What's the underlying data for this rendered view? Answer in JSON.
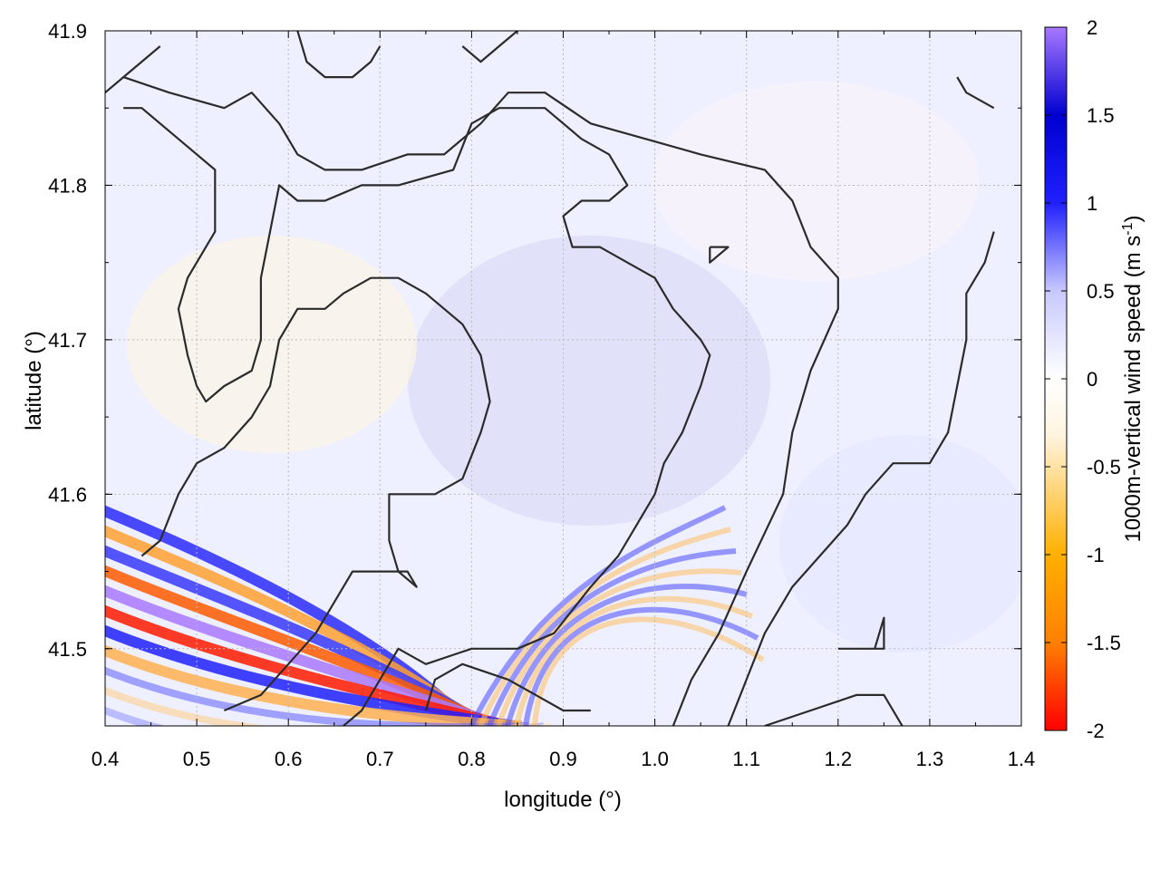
{
  "chart_data": {
    "type": "heatmap",
    "title": "",
    "xlabel": "longitude (°)",
    "ylabel": "latitude (°)",
    "xlim": [
      0.4,
      1.4
    ],
    "ylim": [
      41.45,
      41.9
    ],
    "xticks": [
      "0.4",
      "0.5",
      "0.6",
      "0.7",
      "0.8",
      "0.9",
      "1.0",
      "1.1",
      "1.2",
      "1.3",
      "1.4"
    ],
    "yticks": [
      "41.5",
      "41.6",
      "41.7",
      "41.8",
      "41.9"
    ],
    "grid": true,
    "colorbar": {
      "label": "1000m-vertical wind speed (m s",
      "label_sup": "-1",
      "label_end": ")",
      "range": [
        -2,
        2
      ],
      "ticks": [
        "2",
        "1.5",
        "1",
        "0.5",
        "0",
        "-0.5",
        "-1",
        "-1.5",
        "-2"
      ],
      "colors": [
        "#ff0000",
        "#ff8000",
        "#ffb000",
        "#fff4e0",
        "#ffffff",
        "#c8c8ff",
        "#2020ff",
        "#0000d0",
        "#a878ff"
      ]
    },
    "contours": [
      [
        [
          0.42,
          41.87
        ],
        [
          0.47,
          41.86
        ],
        [
          0.53,
          41.85
        ],
        [
          0.56,
          41.86
        ],
        [
          0.59,
          41.84
        ],
        [
          0.61,
          41.82
        ],
        [
          0.64,
          41.81
        ],
        [
          0.68,
          41.81
        ],
        [
          0.73,
          41.82
        ],
        [
          0.77,
          41.82
        ],
        [
          0.81,
          41.84
        ],
        [
          0.84,
          41.86
        ],
        [
          0.88,
          41.86
        ],
        [
          0.93,
          41.84
        ],
        [
          0.99,
          41.83
        ],
        [
          1.05,
          41.82
        ],
        [
          1.12,
          41.81
        ],
        [
          1.15,
          41.79
        ],
        [
          1.17,
          41.76
        ],
        [
          1.2,
          41.74
        ],
        [
          1.2,
          41.72
        ],
        [
          1.17,
          41.68
        ],
        [
          1.15,
          41.64
        ],
        [
          1.14,
          41.6
        ],
        [
          1.1,
          41.55
        ],
        [
          1.07,
          41.51
        ],
        [
          1.04,
          41.48
        ],
        [
          1.02,
          41.45
        ]
      ],
      [
        [
          0.42,
          41.85
        ],
        [
          0.44,
          41.85
        ],
        [
          0.48,
          41.83
        ],
        [
          0.52,
          41.81
        ],
        [
          0.52,
          41.77
        ],
        [
          0.51,
          41.76
        ],
        [
          0.49,
          41.74
        ],
        [
          0.48,
          41.72
        ],
        [
          0.49,
          41.69
        ],
        [
          0.5,
          41.67
        ],
        [
          0.51,
          41.66
        ],
        [
          0.53,
          41.67
        ],
        [
          0.56,
          41.68
        ],
        [
          0.57,
          41.7
        ],
        [
          0.57,
          41.74
        ],
        [
          0.58,
          41.77
        ],
        [
          0.59,
          41.8
        ],
        [
          0.61,
          41.79
        ],
        [
          0.64,
          41.79
        ],
        [
          0.68,
          41.8
        ],
        [
          0.72,
          41.8
        ],
        [
          0.78,
          41.81
        ],
        [
          0.8,
          41.84
        ],
        [
          0.83,
          41.85
        ],
        [
          0.88,
          41.85
        ],
        [
          0.92,
          41.83
        ],
        [
          0.95,
          41.82
        ],
        [
          0.97,
          41.8
        ],
        [
          0.95,
          41.79
        ],
        [
          0.92,
          41.79
        ],
        [
          0.9,
          41.78
        ],
        [
          0.91,
          41.76
        ],
        [
          0.94,
          41.76
        ],
        [
          0.97,
          41.75
        ],
        [
          1.0,
          41.74
        ],
        [
          1.02,
          41.72
        ],
        [
          1.05,
          41.7
        ],
        [
          1.06,
          41.69
        ],
        [
          1.05,
          41.67
        ],
        [
          1.03,
          41.64
        ],
        [
          1.01,
          41.62
        ],
        [
          1.0,
          41.6
        ],
        [
          0.98,
          41.58
        ],
        [
          0.96,
          41.56
        ],
        [
          0.93,
          41.54
        ],
        [
          0.89,
          41.51
        ],
        [
          0.85,
          41.5
        ],
        [
          0.8,
          41.5
        ],
        [
          0.75,
          41.49
        ],
        [
          0.72,
          41.5
        ],
        [
          0.7,
          41.48
        ],
        [
          0.68,
          41.46
        ],
        [
          0.66,
          41.45
        ]
      ],
      [
        [
          0.44,
          41.56
        ],
        [
          0.46,
          41.57
        ],
        [
          0.48,
          41.6
        ],
        [
          0.5,
          41.62
        ],
        [
          0.53,
          41.63
        ],
        [
          0.56,
          41.65
        ],
        [
          0.58,
          41.67
        ],
        [
          0.59,
          41.7
        ],
        [
          0.61,
          41.72
        ],
        [
          0.64,
          41.72
        ],
        [
          0.66,
          41.73
        ],
        [
          0.69,
          41.74
        ],
        [
          0.72,
          41.74
        ],
        [
          0.75,
          41.73
        ],
        [
          0.77,
          41.72
        ],
        [
          0.79,
          41.71
        ],
        [
          0.81,
          41.69
        ],
        [
          0.82,
          41.66
        ],
        [
          0.81,
          41.64
        ],
        [
          0.79,
          41.61
        ],
        [
          0.76,
          41.6
        ],
        [
          0.73,
          41.6
        ],
        [
          0.71,
          41.6
        ],
        [
          0.71,
          41.57
        ],
        [
          0.72,
          41.55
        ],
        [
          0.74,
          41.54
        ],
        [
          0.73,
          41.55
        ],
        [
          0.7,
          41.55
        ],
        [
          0.67,
          41.55
        ],
        [
          0.65,
          41.53
        ],
        [
          0.63,
          41.51
        ],
        [
          0.6,
          41.49
        ],
        [
          0.57,
          41.47
        ],
        [
          0.53,
          41.46
        ]
      ],
      [
        [
          0.38,
          41.89
        ],
        [
          0.39,
          41.87
        ],
        [
          0.4,
          41.86
        ],
        [
          0.42,
          41.87
        ],
        [
          0.44,
          41.88
        ],
        [
          0.46,
          41.89
        ]
      ],
      [
        [
          0.61,
          41.9
        ],
        [
          0.62,
          41.88
        ],
        [
          0.64,
          41.87
        ],
        [
          0.67,
          41.87
        ],
        [
          0.69,
          41.88
        ],
        [
          0.7,
          41.89
        ]
      ],
      [
        [
          0.79,
          41.89
        ],
        [
          0.81,
          41.88
        ],
        [
          0.83,
          41.89
        ],
        [
          0.85,
          41.9
        ]
      ],
      [
        [
          1.33,
          41.87
        ],
        [
          1.34,
          41.86
        ],
        [
          1.37,
          41.85
        ]
      ],
      [
        [
          1.37,
          41.77
        ],
        [
          1.36,
          41.75
        ],
        [
          1.34,
          41.73
        ],
        [
          1.34,
          41.7
        ],
        [
          1.33,
          41.67
        ],
        [
          1.32,
          41.64
        ],
        [
          1.3,
          41.62
        ],
        [
          1.26,
          41.62
        ],
        [
          1.23,
          41.6
        ],
        [
          1.21,
          41.58
        ],
        [
          1.18,
          41.56
        ],
        [
          1.15,
          41.54
        ],
        [
          1.12,
          41.51
        ],
        [
          1.1,
          41.48
        ],
        [
          1.08,
          41.45
        ]
      ],
      [
        [
          1.06,
          41.76
        ],
        [
          1.08,
          41.76
        ],
        [
          1.06,
          41.75
        ],
        [
          1.06,
          41.76
        ]
      ],
      [
        [
          1.2,
          41.5
        ],
        [
          1.24,
          41.5
        ],
        [
          1.25,
          41.52
        ],
        [
          1.25,
          41.5
        ],
        [
          1.2,
          41.5
        ]
      ],
      [
        [
          0.75,
          41.46
        ],
        [
          0.76,
          41.48
        ],
        [
          0.79,
          41.49
        ],
        [
          0.84,
          41.48
        ],
        [
          0.87,
          41.47
        ],
        [
          0.9,
          41.46
        ],
        [
          0.93,
          41.46
        ]
      ],
      [
        [
          1.12,
          41.45
        ],
        [
          1.17,
          41.46
        ],
        [
          1.22,
          41.47
        ],
        [
          1.25,
          41.47
        ],
        [
          1.27,
          41.45
        ]
      ]
    ]
  }
}
